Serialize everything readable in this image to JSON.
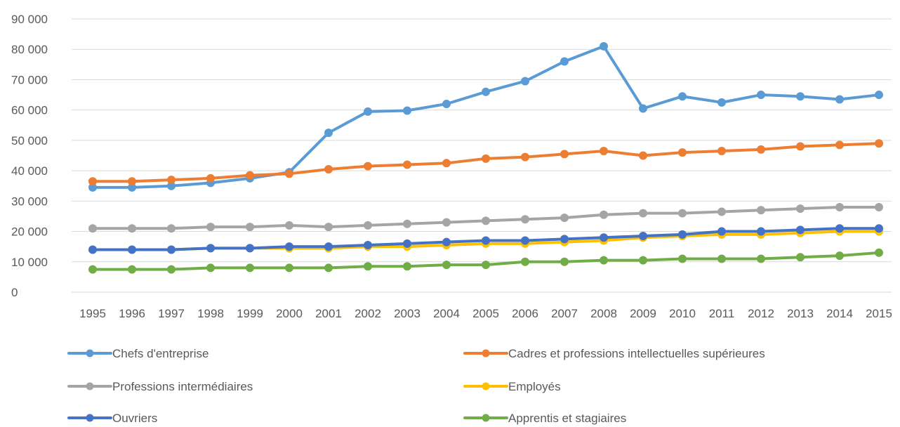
{
  "chart_data": {
    "type": "line",
    "title": "",
    "xlabel": "",
    "ylabel": "",
    "ylim": [
      0,
      90000
    ],
    "yticks": [
      0,
      10000,
      20000,
      30000,
      40000,
      50000,
      60000,
      70000,
      80000,
      90000
    ],
    "ytick_labels": [
      "0",
      "10 000",
      "20 000",
      "30 000",
      "40 000",
      "50 000",
      "60 000",
      "70 000",
      "80 000",
      "90 000"
    ],
    "grid": true,
    "legend_position": "bottom",
    "categories": [
      "1995",
      "1996",
      "1997",
      "1998",
      "1999",
      "2000",
      "2001",
      "2002",
      "2003",
      "2004",
      "2005",
      "2006",
      "2007",
      "2008",
      "2009",
      "2010",
      "2011",
      "2012",
      "2013",
      "2014",
      "2015"
    ],
    "series": [
      {
        "name": "Chefs d'entreprise",
        "color": "#5B9BD5",
        "values": [
          34500,
          34500,
          35000,
          36000,
          37500,
          39500,
          52500,
          59500,
          59800,
          62000,
          66000,
          69500,
          76000,
          81000,
          60500,
          64500,
          62500,
          65000,
          64500,
          63500,
          65000
        ]
      },
      {
        "name": "Cadres et professions intellectuelles supérieures",
        "color": "#ED7D31",
        "values": [
          36500,
          36500,
          37000,
          37500,
          38500,
          39000,
          40500,
          41500,
          42000,
          42500,
          44000,
          44500,
          45500,
          46500,
          45000,
          46000,
          46500,
          47000,
          48000,
          48500,
          49000
        ]
      },
      {
        "name": "Professions intermédiaires",
        "color": "#A5A5A5",
        "values": [
          21000,
          21000,
          21000,
          21500,
          21500,
          22000,
          21500,
          22000,
          22500,
          23000,
          23500,
          24000,
          24500,
          25500,
          26000,
          26000,
          26500,
          27000,
          27500,
          28000,
          28000
        ]
      },
      {
        "name": "Employés",
        "color": "#FFC000",
        "values": [
          14000,
          14000,
          14000,
          14500,
          14500,
          14500,
          14500,
          15000,
          15000,
          15500,
          16000,
          16000,
          16500,
          17000,
          18000,
          18500,
          19000,
          19000,
          19500,
          20000,
          20000
        ]
      },
      {
        "name": "Ouvriers",
        "color": "#4472C4",
        "values": [
          14000,
          14000,
          14000,
          14500,
          14500,
          15000,
          15000,
          15500,
          16000,
          16500,
          17000,
          17000,
          17500,
          18000,
          18500,
          19000,
          20000,
          20000,
          20500,
          21000,
          21000
        ]
      },
      {
        "name": "Apprentis et stagiaires",
        "color": "#70AD47",
        "values": [
          7500,
          7500,
          7500,
          8000,
          8000,
          8000,
          8000,
          8500,
          8500,
          9000,
          9000,
          10000,
          10000,
          10500,
          10500,
          11000,
          11000,
          11000,
          11500,
          12000,
          13000
        ]
      }
    ]
  }
}
